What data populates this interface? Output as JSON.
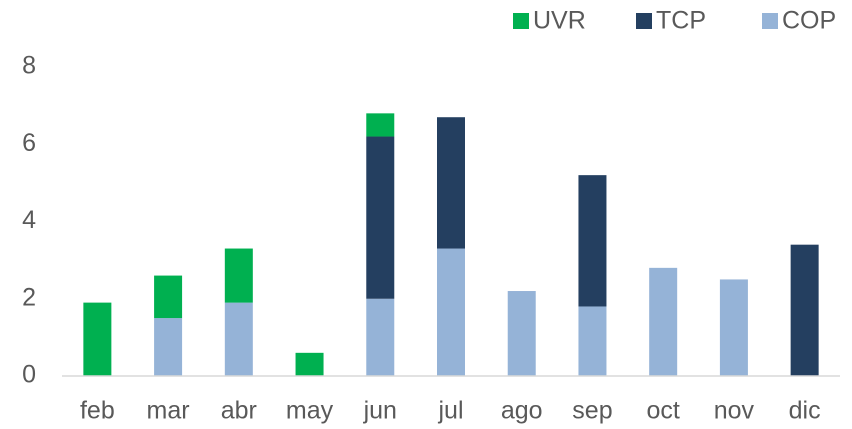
{
  "chart_data": {
    "type": "stacked_bar",
    "categories": [
      "feb",
      "mar",
      "abr",
      "may",
      "jun",
      "jul",
      "ago",
      "sep",
      "oct",
      "nov",
      "dic"
    ],
    "series": [
      {
        "name": "UVR",
        "color": "#00b050",
        "values": [
          1.9,
          1.1,
          1.4,
          0.6,
          0.6,
          0,
          0,
          0,
          0,
          0,
          0
        ]
      },
      {
        "name": "TCP",
        "color": "#243f60",
        "values": [
          0,
          0,
          0,
          0,
          4.2,
          3.4,
          0,
          3.4,
          0,
          0,
          3.4
        ]
      },
      {
        "name": "COP",
        "color": "#95b3d7",
        "values": [
          0,
          1.5,
          1.9,
          0,
          2.0,
          3.3,
          2.2,
          1.8,
          2.8,
          2.5,
          0
        ]
      }
    ],
    "stack_order": [
      "COP",
      "TCP",
      "UVR"
    ],
    "ylim": [
      0,
      8
    ],
    "yticks": [
      0,
      2,
      4,
      6,
      8
    ],
    "grid": false,
    "legend": "top-right"
  }
}
